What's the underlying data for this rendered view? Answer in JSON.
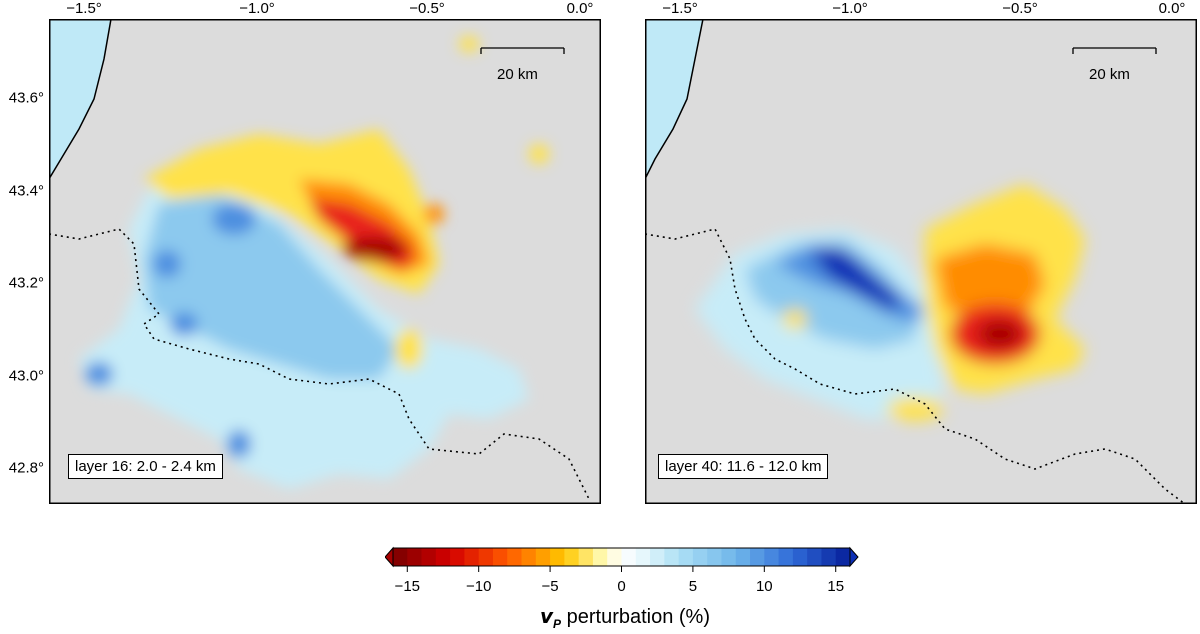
{
  "colors": {
    "land": "#dcdcdc",
    "sea": "#bfe9f7",
    "neg_strong": "#a50000",
    "neg": "#e8231f",
    "neg_mid": "#ff8c00",
    "neg_weak": "#ffe24a",
    "zero": "#ffffff",
    "pos_weak": "#c7ecf8",
    "pos_mid": "#8cc9ee",
    "pos": "#4d8fe0",
    "pos_strong": "#0c2fb5"
  },
  "axes": {
    "lon_labels": [
      "−1.5°",
      "−1.0°",
      "−0.5°",
      "0.0°"
    ],
    "lat_labels": [
      "43.6°",
      "43.4°",
      "43.2°",
      "43.0°",
      "42.8°"
    ]
  },
  "panels": [
    {
      "id": "left",
      "layer_label": "layer 16: 2.0 - 2.4 km",
      "scale_label": "20 km",
      "anomalies": [
        {
          "sign": "neg",
          "strength": 0.95,
          "where": "east-central"
        },
        {
          "sign": "neg",
          "strength": 0.45,
          "where": "north"
        },
        {
          "sign": "pos",
          "strength": 0.6,
          "where": "west and south"
        }
      ]
    },
    {
      "id": "right",
      "layer_label": "layer 40: 11.6 - 12.0 km",
      "scale_label": "20 km",
      "anomalies": [
        {
          "sign": "pos",
          "strength": 1.0,
          "where": "northwest"
        },
        {
          "sign": "neg",
          "strength": 0.9,
          "where": "east"
        }
      ]
    }
  ],
  "colorbar": {
    "ticks": [
      "−15",
      "−10",
      "−5",
      "0",
      "5",
      "10",
      "15"
    ],
    "range": [
      -16,
      16
    ],
    "title_symbol": "v",
    "title_subscript": "P",
    "title_text": " perturbation (%)"
  }
}
